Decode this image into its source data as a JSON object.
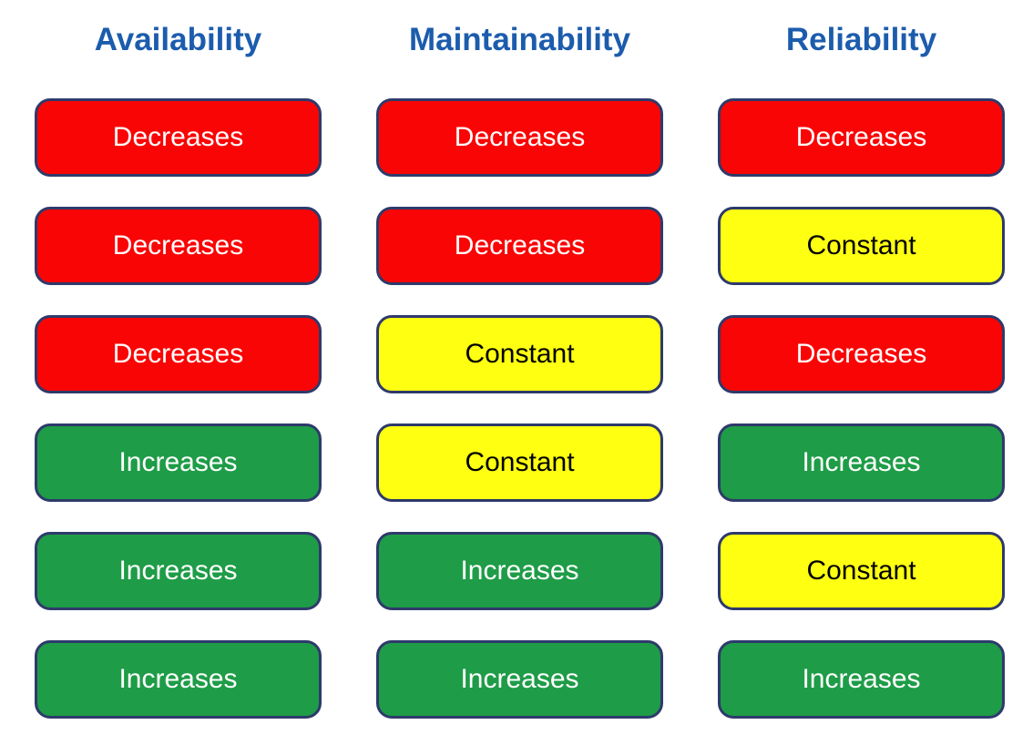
{
  "page": {
    "background": "#FFFFFF"
  },
  "colors": {
    "header_text": "#1C5CAD",
    "cell_border": "#2E3A6B",
    "red": "#FA0505",
    "yellow": "#FFFF12",
    "green": "#1E9C47",
    "cell_text_light": "#FFFFFF",
    "cell_text_dark": "#000000"
  },
  "columns": [
    {
      "key": "availability",
      "header": "Availability",
      "cells": [
        {
          "label": "Decreases",
          "color": "red"
        },
        {
          "label": "Decreases",
          "color": "red"
        },
        {
          "label": "Decreases",
          "color": "red"
        },
        {
          "label": "Increases",
          "color": "green"
        },
        {
          "label": "Increases",
          "color": "green"
        },
        {
          "label": "Increases",
          "color": "green"
        }
      ]
    },
    {
      "key": "maintainability",
      "header": "Maintainability",
      "cells": [
        {
          "label": "Decreases",
          "color": "red"
        },
        {
          "label": "Decreases",
          "color": "red"
        },
        {
          "label": "Constant",
          "color": "yellow"
        },
        {
          "label": "Constant",
          "color": "yellow"
        },
        {
          "label": "Increases",
          "color": "green"
        },
        {
          "label": "Increases",
          "color": "green"
        }
      ]
    },
    {
      "key": "reliability",
      "header": "Reliability",
      "cells": [
        {
          "label": "Decreases",
          "color": "red"
        },
        {
          "label": "Constant",
          "color": "yellow"
        },
        {
          "label": "Decreases",
          "color": "red"
        },
        {
          "label": "Increases",
          "color": "green"
        },
        {
          "label": "Constant",
          "color": "yellow"
        },
        {
          "label": "Increases",
          "color": "green"
        }
      ]
    }
  ]
}
